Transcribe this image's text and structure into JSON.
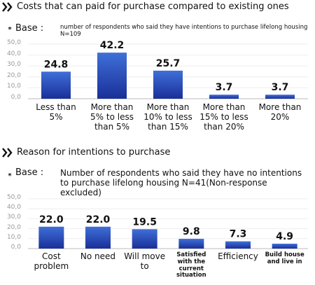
{
  "chart_data": [
    {
      "type": "bar",
      "title": "Costs that can paid for purchase compared to existing ones",
      "base_label": "Base :",
      "base": "number of respondents who said they have intentions to purchase lifelong housing N=109",
      "categories": [
        "Less than 5%",
        "More than 5% to less than 5%",
        "More than 10% to less than 15%",
        "More than 15% to less than 20%",
        "More than 20%"
      ],
      "values": [
        24.8,
        42.2,
        25.7,
        3.7,
        3.7
      ],
      "color": "#2447b0",
      "ylim": [
        0,
        50
      ],
      "yticks": [
        {
          "value": 0,
          "label": "0,0"
        },
        {
          "value": 10,
          "label": "10,0"
        },
        {
          "value": 20,
          "label": "20,0"
        },
        {
          "value": 30,
          "label": "30,0"
        },
        {
          "value": 40,
          "label": "40,0"
        },
        {
          "value": 50,
          "label": "50,0"
        }
      ],
      "grid": true
    },
    {
      "type": "bar",
      "title": "Reason for intentions to purchase",
      "base_label": "Base :",
      "base": "Number of respondents who said they have no intentions to purchase lifelong housing N=41(Non-response excluded)",
      "categories": [
        "Cost problem",
        "No need",
        "Will move to",
        "Satisfied with the current situation",
        "Efficiency",
        "Build house and live in"
      ],
      "values": [
        22.0,
        22.0,
        19.5,
        9.8,
        7.3,
        4.9
      ],
      "value_labels": [
        "22.0",
        "22.0",
        "19.5",
        "9.8",
        "7.3",
        "4.9"
      ],
      "color": "#2447b0",
      "ylim": [
        0,
        50
      ],
      "yticks": [
        {
          "value": 0,
          "label": "0,0"
        },
        {
          "value": 10,
          "label": "10,0"
        },
        {
          "value": 20,
          "label": "20,0"
        },
        {
          "value": 30,
          "label": "30,0"
        },
        {
          "value": 40,
          "label": "40,0"
        },
        {
          "value": 50,
          "label": "50,0"
        }
      ],
      "grid": true
    }
  ]
}
